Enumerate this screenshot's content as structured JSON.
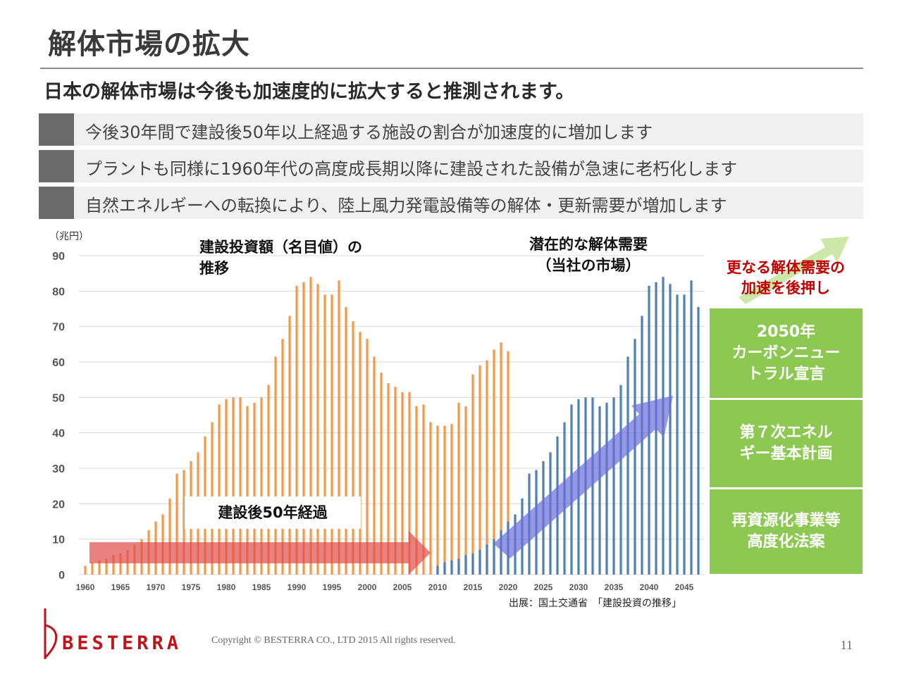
{
  "title": "解体市場の拡大",
  "subtitle": "日本の解体市場は今後も加速度的に拡大すると推測されます。",
  "bullets": [
    "今後30年間で建設後50年以上経過する施設の割合が加速度的に増加します",
    "プラントも同様に1960年代の高度成長期以降に建設された設備が急速に老朽化します",
    "自然エネルギーへの転換により、陸上風力発電設備等の解体・更新需要が増加します"
  ],
  "annotations": {
    "investment_line1": "建設投資額（名目値）の",
    "investment_line2": "推移",
    "latent_line1": "潜在的な解体需要",
    "latent_line2": "（当社の市場）",
    "elapsed": "建設後50年経過",
    "accel_line1": "更なる解体需要の",
    "accel_line2": "加速を後押し"
  },
  "policy_boxes": [
    "2050年\nカーボンニュー\nトラル宣言",
    "第７次エネル\nギー基本計画",
    "再資源化事業等\n高度化法案"
  ],
  "source": "出展：国土交通省　「建設投資の推移」",
  "logo": "BESTERRA",
  "copyright": "Copyright © BESTERRA CO., LTD 2015 All rights reserved.",
  "page_number": "11",
  "colors": {
    "investment": "#f4984a",
    "latent": "#4f7fb5",
    "red_arrow": "#e05050",
    "blue_arrow": "#6c70d8",
    "green_arrow": "#c6e6a0",
    "policy": "#8dc853",
    "accent_red": "#c00000"
  },
  "chart_data": {
    "type": "bar",
    "unit_label": "（兆円）",
    "ylim": [
      0,
      90
    ],
    "yticks": [
      0,
      10,
      20,
      30,
      40,
      50,
      60,
      70,
      80,
      90
    ],
    "xlim": [
      1960,
      2047
    ],
    "xticks": [
      1960,
      1965,
      1970,
      1975,
      1980,
      1985,
      1990,
      1995,
      2000,
      2005,
      2010,
      2015,
      2020,
      2025,
      2030,
      2035,
      2040,
      2045
    ],
    "grid": true,
    "series": [
      {
        "name": "建設投資額（名目値）の推移",
        "start_year": 1960,
        "values": [
          2.5,
          3.5,
          4,
          4.5,
          5.5,
          6,
          7,
          8.5,
          10,
          12.5,
          15,
          17,
          21.5,
          28.5,
          29.5,
          32,
          34.5,
          39,
          43,
          48,
          49.5,
          50,
          50,
          47.5,
          48.5,
          50,
          53.5,
          61.5,
          66.5,
          73,
          81.5,
          82.5,
          84,
          82,
          79,
          79,
          83,
          75.5,
          71.5,
          68.5,
          66.5,
          61.5,
          57,
          54,
          53,
          51.5,
          51.5,
          47.5,
          48,
          43,
          42,
          42,
          42.5,
          48.5,
          47.5,
          56.5,
          59,
          60.5,
          63.5,
          65.5,
          63
        ]
      },
      {
        "name": "潜在的な解体需要（当社の市場）",
        "start_year": 2010,
        "values": [
          2.5,
          3.5,
          4,
          4.5,
          5.5,
          6,
          7,
          8.5,
          10,
          12.5,
          15,
          17,
          21.5,
          28.5,
          29.5,
          32,
          34.5,
          39,
          43,
          48,
          49.5,
          50,
          50,
          47.5,
          48.5,
          50,
          53.5,
          61.5,
          66.5,
          73,
          81.5,
          82.5,
          84,
          82,
          79,
          79,
          83,
          75.5
        ]
      }
    ]
  }
}
